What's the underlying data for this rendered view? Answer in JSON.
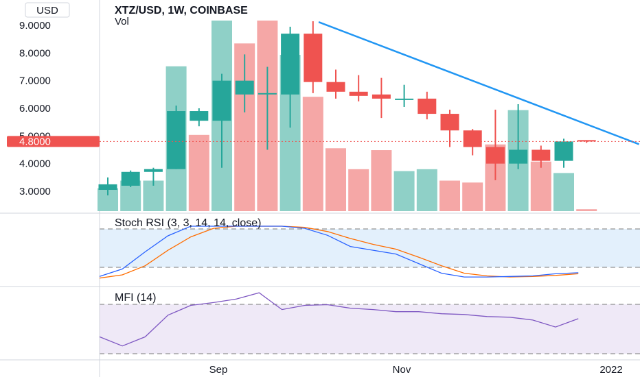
{
  "header": {
    "currency_badge": "USD",
    "title": "XTZ/USD, 1W, COINBASE",
    "volume_label": "Vol"
  },
  "price_axis": {
    "ticks": [
      "9.0000",
      "8.0000",
      "7.0000",
      "6.0000",
      "5.0000",
      "4.0000",
      "3.0000"
    ],
    "tick_values": [
      9,
      8,
      7,
      6,
      5,
      4,
      3
    ],
    "current_price_label": "4.8000",
    "current_price": 4.8
  },
  "time_axis": {
    "labels": [
      "Sep",
      "Nov",
      "2022"
    ]
  },
  "colors": {
    "up": "#26a69a",
    "down": "#ef5350",
    "up_volume": "#8fd0c7",
    "down_volume": "#f5a7a6",
    "trendline": "#2196f3",
    "stoch_k": "#2962ff",
    "stoch_d": "#ff6d00",
    "mfi": "#7e57c2",
    "stoch_band": "#e3f0fc",
    "mfi_band": "#efe9f7"
  },
  "chart_data": [
    {
      "type": "candlestick",
      "title": "XTZ/USD, 1W, COINBASE",
      "ylim": [
        2.3,
        9.4
      ],
      "candles": [
        {
          "o": 3.05,
          "h": 3.5,
          "l": 2.85,
          "c": 3.25
        },
        {
          "o": 3.2,
          "h": 3.75,
          "l": 3.15,
          "c": 3.7
        },
        {
          "o": 3.7,
          "h": 3.85,
          "l": 3.2,
          "c": 3.8
        },
        {
          "o": 3.8,
          "h": 6.1,
          "l": 3.8,
          "c": 5.9
        },
        {
          "o": 5.55,
          "h": 6.0,
          "l": 5.35,
          "c": 5.9
        },
        {
          "o": 5.55,
          "h": 7.25,
          "l": 3.85,
          "c": 7.0
        },
        {
          "o": 6.5,
          "h": 7.95,
          "l": 5.85,
          "c": 7.0
        },
        {
          "o": 6.55,
          "h": 7.5,
          "l": 4.5,
          "c": 6.55
        },
        {
          "o": 6.5,
          "h": 8.95,
          "l": 5.3,
          "c": 8.7
        },
        {
          "o": 8.7,
          "h": 9.15,
          "l": 6.55,
          "c": 6.95
        },
        {
          "o": 6.95,
          "h": 7.4,
          "l": 6.35,
          "c": 6.6
        },
        {
          "o": 6.6,
          "h": 7.2,
          "l": 6.25,
          "c": 6.45
        },
        {
          "o": 6.5,
          "h": 7.1,
          "l": 5.65,
          "c": 6.35
        },
        {
          "o": 6.35,
          "h": 6.85,
          "l": 6.05,
          "c": 6.35
        },
        {
          "o": 6.35,
          "h": 6.6,
          "l": 5.6,
          "c": 5.8
        },
        {
          "o": 5.8,
          "h": 5.95,
          "l": 4.6,
          "c": 5.2
        },
        {
          "o": 5.2,
          "h": 5.25,
          "l": 4.3,
          "c": 4.6
        },
        {
          "o": 4.6,
          "h": 5.95,
          "l": 3.4,
          "c": 4.0
        },
        {
          "o": 4.0,
          "h": 6.15,
          "l": 3.8,
          "c": 4.5
        },
        {
          "o": 4.5,
          "h": 4.65,
          "l": 3.85,
          "c": 4.1
        },
        {
          "o": 4.1,
          "h": 4.9,
          "l": 3.85,
          "c": 4.8
        },
        {
          "o": 4.85,
          "h": 4.85,
          "l": 4.75,
          "c": 4.8
        }
      ],
      "volume_direction": [
        "up",
        "up",
        "up",
        "up",
        "down",
        "up",
        "down",
        "down",
        "up",
        "down",
        "down",
        "down",
        "down",
        "up",
        "up",
        "down",
        "down",
        "down",
        "up",
        "down",
        "up",
        "down"
      ],
      "volume_relative": [
        0.12,
        0.16,
        0.16,
        0.76,
        0.4,
        1.0,
        0.88,
        1.0,
        0.82,
        0.6,
        0.33,
        0.22,
        0.32,
        0.21,
        0.22,
        0.16,
        0.15,
        0.35,
        0.53,
        0.26,
        0.2,
        0.01
      ],
      "trendline": {
        "from": {
          "candle": 9.25,
          "price": 9.12
        },
        "to": {
          "candle": 23.3,
          "price": 4.7
        }
      }
    },
    {
      "type": "line",
      "title": "Stoch RSI (3, 3, 14, 14, close)",
      "ylim": [
        0,
        100
      ],
      "bands": [
        80,
        20
      ],
      "series": [
        {
          "values": [
            6,
            20,
            52,
            82,
            100,
            100,
            100,
            100,
            100,
            96,
            83,
            62,
            55,
            48,
            30,
            12,
            5,
            5,
            6,
            7,
            11,
            13
          ]
        },
        {
          "values": [
            3,
            9,
            26,
            55,
            80,
            96,
            100,
            100,
            100,
            98,
            90,
            77,
            66,
            57,
            42,
            26,
            12,
            7,
            5,
            6,
            8,
            11
          ]
        }
      ]
    },
    {
      "type": "line",
      "title": "MFI (14)",
      "ylim": [
        0,
        100
      ],
      "bands": [
        80,
        20
      ],
      "series": [
        {
          "values": [
            30,
            17,
            30,
            61,
            75,
            79,
            84,
            93,
            69,
            75,
            76,
            71,
            69,
            66,
            66,
            63,
            62,
            59,
            58,
            54,
            44,
            56
          ]
        }
      ]
    }
  ]
}
